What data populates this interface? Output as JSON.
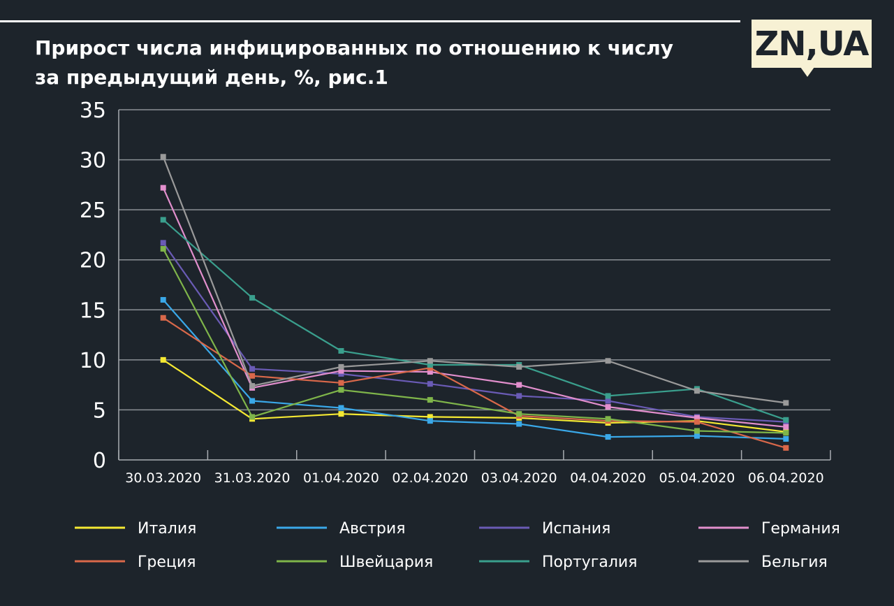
{
  "header": {
    "title_line1": "Прирост числа инфицированных по отношению к числу",
    "title_line2": "за предыдущий день, %, рис.1",
    "logo_text": "ZN,UA",
    "logo_bg": "#f7f1d4",
    "background": "#1d242b"
  },
  "chart_data": {
    "type": "line",
    "title": "Прирост числа инфицированных по отношению к числу за предыдущий день, %, рис.1",
    "xlabel": "",
    "ylabel": "",
    "ylim": [
      0,
      35
    ],
    "yticks": [
      0,
      5,
      10,
      15,
      20,
      25,
      30,
      35
    ],
    "grid": "horizontal",
    "legend_position": "bottom",
    "categories": [
      "30.03.2020",
      "31.03.2020",
      "01.04.2020",
      "02.04.2020",
      "03.04.2020",
      "04.04.2020",
      "05.04.2020",
      "06.04.2020"
    ],
    "series": [
      {
        "name": "Италия",
        "color": "#f5e933",
        "values": [
          10.0,
          4.1,
          4.6,
          4.3,
          4.2,
          3.7,
          3.9,
          2.8
        ]
      },
      {
        "name": "Австрия",
        "color": "#3aa8e8",
        "values": [
          16.0,
          5.9,
          5.2,
          3.9,
          3.6,
          2.3,
          2.4,
          2.1
        ]
      },
      {
        "name": "Испания",
        "color": "#6a5bb5",
        "values": [
          21.7,
          9.1,
          8.6,
          7.6,
          6.4,
          5.9,
          4.3,
          3.8
        ]
      },
      {
        "name": "Германия",
        "color": "#e28fcd",
        "values": [
          27.2,
          7.2,
          8.9,
          8.8,
          7.5,
          5.3,
          4.2,
          3.3
        ]
      },
      {
        "name": "Греция",
        "color": "#d9684a",
        "values": [
          14.2,
          8.4,
          7.7,
          9.2,
          4.4,
          3.9,
          3.8,
          1.2
        ]
      },
      {
        "name": "Швейцария",
        "color": "#7fb54a",
        "values": [
          21.1,
          4.3,
          7.0,
          6.0,
          4.6,
          4.1,
          2.9,
          2.7
        ]
      },
      {
        "name": "Португалия",
        "color": "#3a9f8d",
        "values": [
          24.0,
          16.2,
          10.9,
          9.5,
          9.5,
          6.4,
          7.1,
          4.0
        ]
      },
      {
        "name": "Бельгия",
        "color": "#9a9a9a",
        "values": [
          30.3,
          7.4,
          9.3,
          9.9,
          9.3,
          9.9,
          6.9,
          5.7
        ]
      }
    ]
  }
}
